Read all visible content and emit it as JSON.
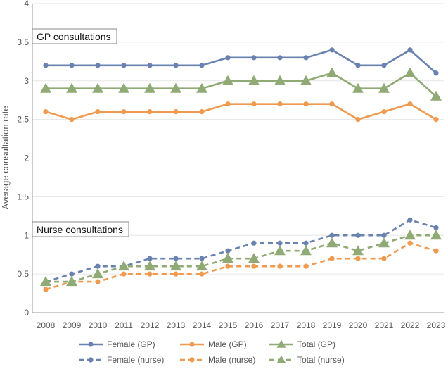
{
  "chart_data": {
    "type": "line",
    "title": "",
    "xlabel": "",
    "ylabel": "Average consultation rate",
    "ylim": [
      0,
      4
    ],
    "yticks": [
      "0",
      "0.5",
      "1",
      "1.5",
      "2",
      "2.5",
      "3",
      "3.5",
      "4"
    ],
    "x": [
      "2008",
      "2009",
      "2010",
      "2011",
      "2012",
      "2013",
      "2014",
      "2015",
      "2016",
      "2017",
      "2018",
      "2019",
      "2020",
      "2021",
      "2022",
      "2023"
    ],
    "annotations": [
      "GP consultations",
      "Nurse consultations"
    ],
    "legend_position": "bottom",
    "series": [
      {
        "name": "Female (GP)",
        "color": "#6a82b0",
        "marker": "circle",
        "dashed": false,
        "values": [
          3.2,
          3.2,
          3.2,
          3.2,
          3.2,
          3.2,
          3.2,
          3.3,
          3.3,
          3.3,
          3.3,
          3.4,
          3.2,
          3.2,
          3.4,
          3.1
        ]
      },
      {
        "name": "Male (GP)",
        "color": "#ef9a4f",
        "marker": "circle",
        "dashed": false,
        "values": [
          2.6,
          2.5,
          2.6,
          2.6,
          2.6,
          2.6,
          2.6,
          2.7,
          2.7,
          2.7,
          2.7,
          2.7,
          2.5,
          2.6,
          2.7,
          2.5
        ]
      },
      {
        "name": "Total (GP)",
        "color": "#8faa74",
        "marker": "triangle",
        "dashed": false,
        "values": [
          2.9,
          2.9,
          2.9,
          2.9,
          2.9,
          2.9,
          2.9,
          3.0,
          3.0,
          3.0,
          3.0,
          3.1,
          2.9,
          2.9,
          3.1,
          2.8
        ]
      },
      {
        "name": "Female (nurse)",
        "color": "#6a82b0",
        "marker": "circle",
        "dashed": true,
        "values": [
          0.4,
          0.5,
          0.6,
          0.6,
          0.7,
          0.7,
          0.7,
          0.8,
          0.9,
          0.9,
          0.9,
          1.0,
          1.0,
          1.0,
          1.2,
          1.1
        ]
      },
      {
        "name": "Male (nurse)",
        "color": "#ef9a4f",
        "marker": "circle",
        "dashed": true,
        "values": [
          0.3,
          0.4,
          0.4,
          0.5,
          0.5,
          0.5,
          0.5,
          0.6,
          0.6,
          0.6,
          0.6,
          0.7,
          0.7,
          0.7,
          0.9,
          0.8
        ]
      },
      {
        "name": "Total (nurse)",
        "color": "#8faa74",
        "marker": "triangle",
        "dashed": true,
        "values": [
          0.4,
          0.4,
          0.5,
          0.6,
          0.6,
          0.6,
          0.6,
          0.7,
          0.7,
          0.8,
          0.8,
          0.9,
          0.8,
          0.9,
          1.0,
          1.0
        ]
      }
    ]
  }
}
